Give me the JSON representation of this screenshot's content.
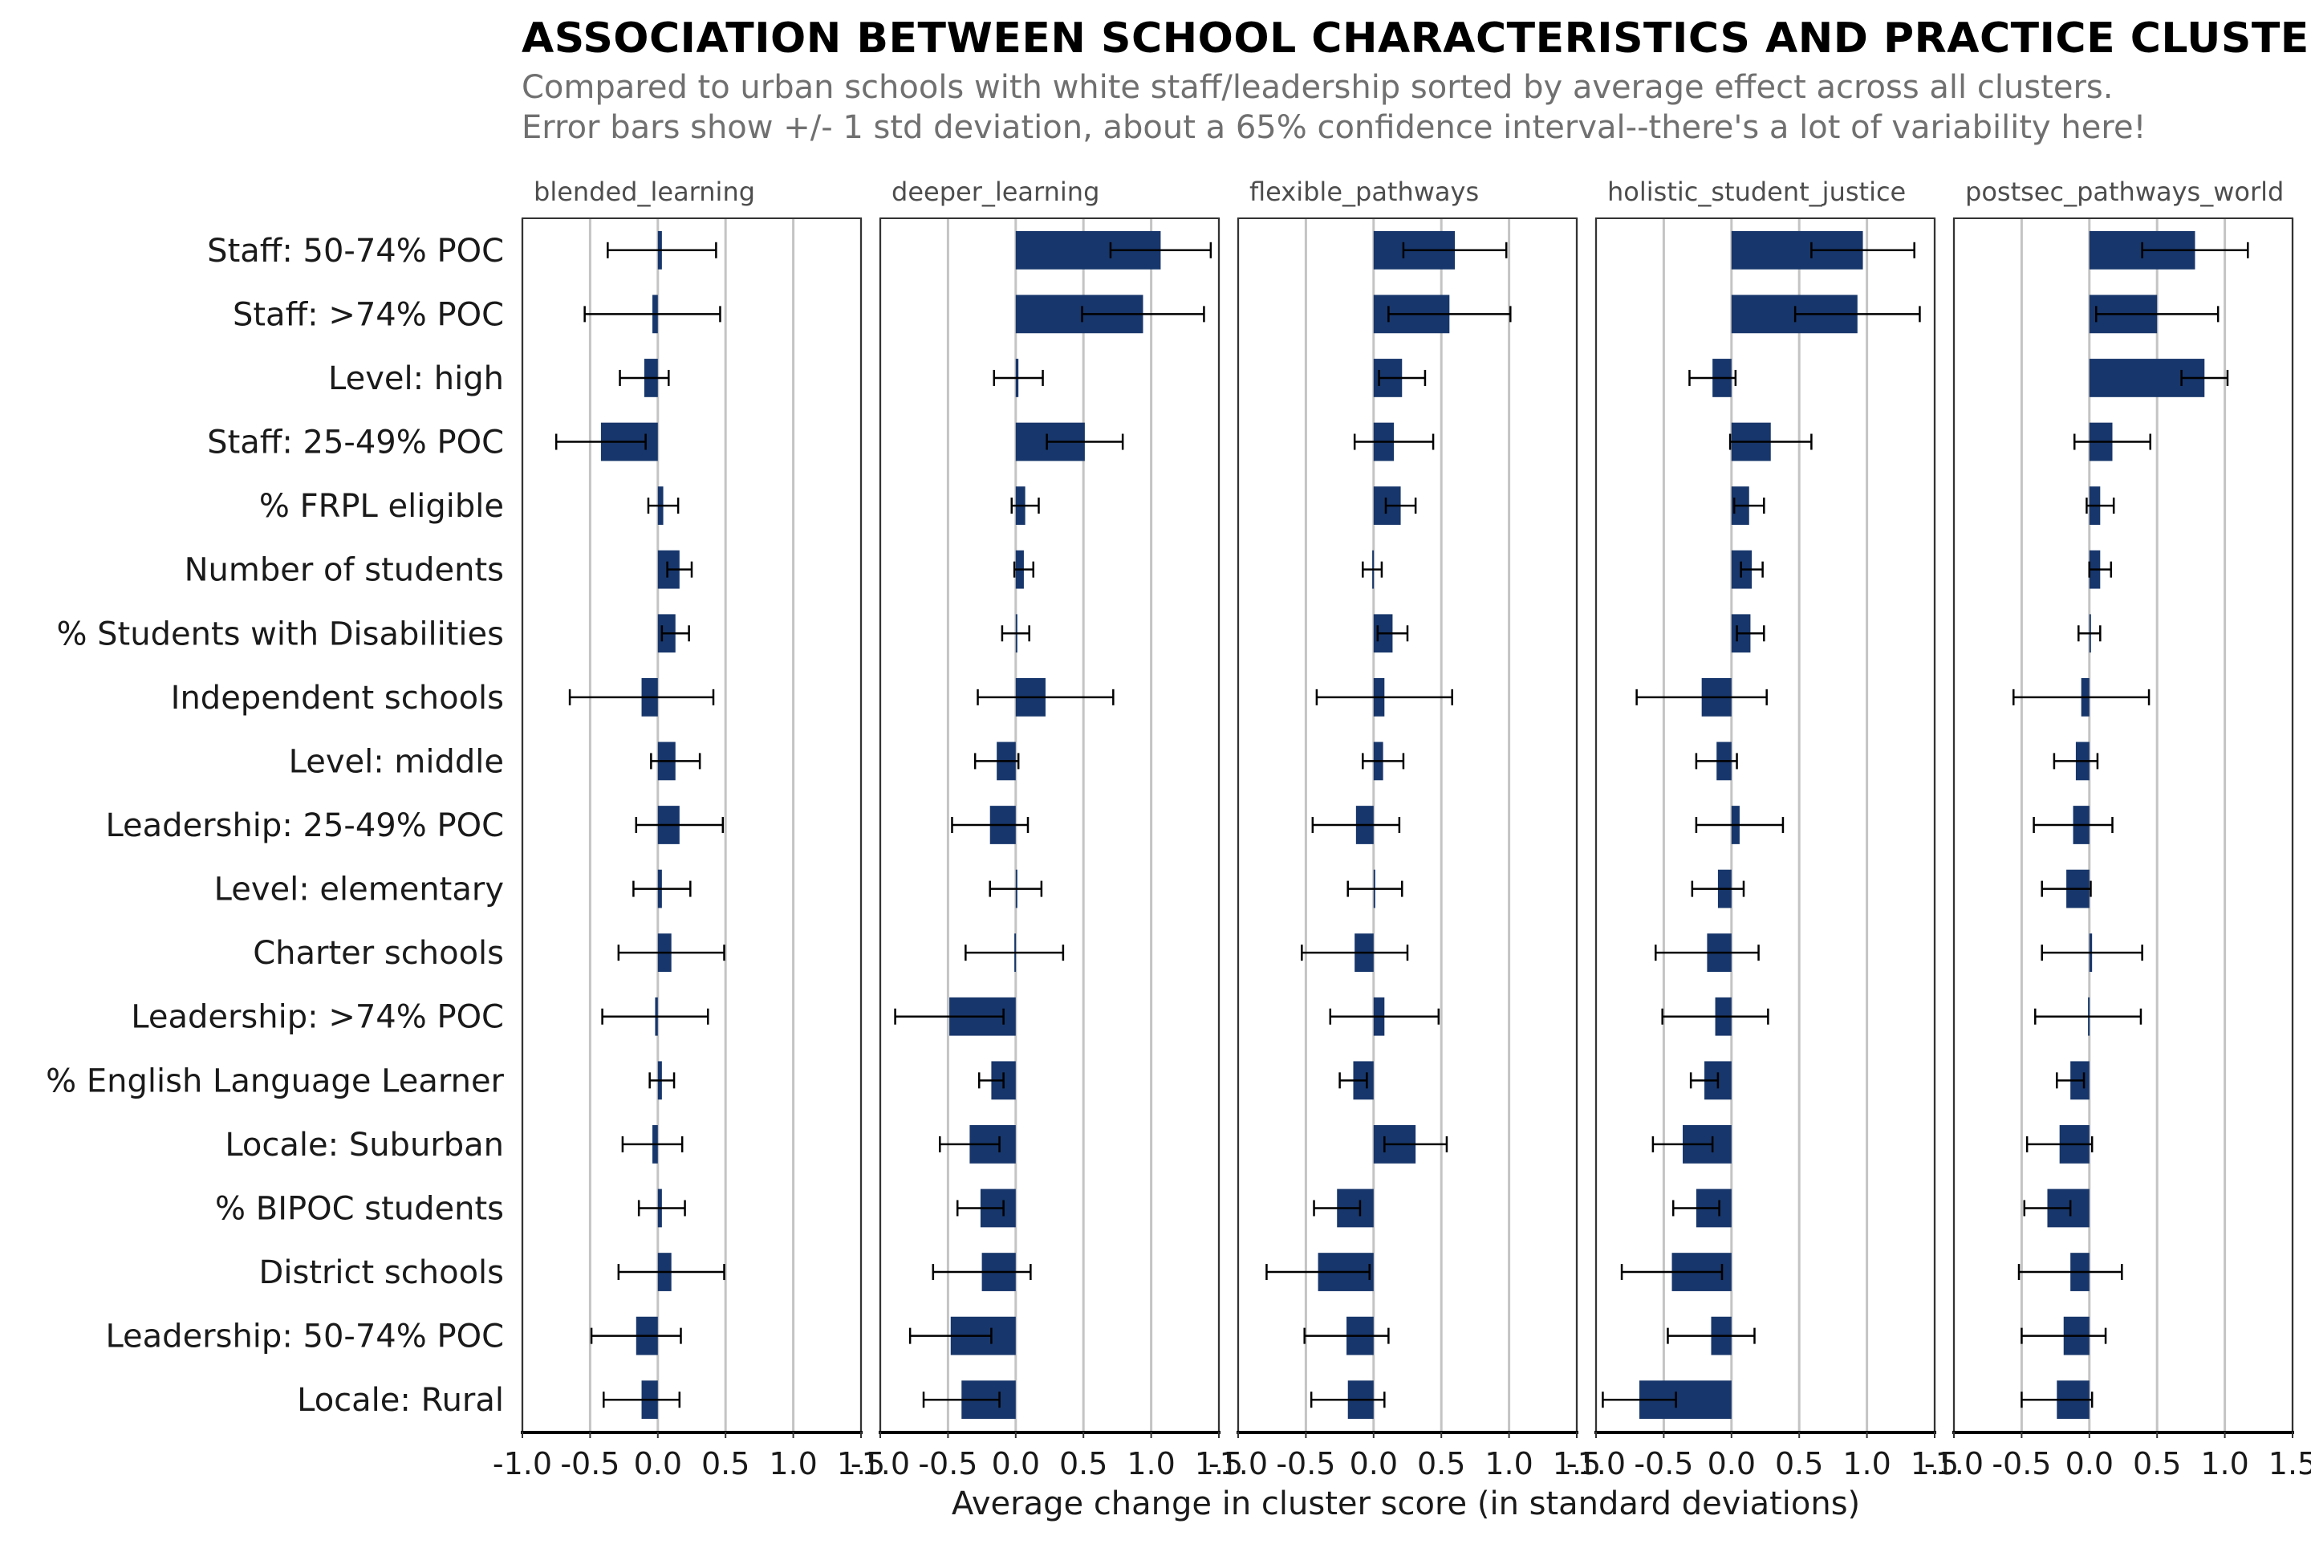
{
  "chart_data": {
    "type": "bar",
    "orientation": "horizontal",
    "title": "ASSOCIATION BETWEEN SCHOOL CHARACTERISTICS AND PRACTICE CLUSTERS",
    "subtitle_lines": [
      "Compared to urban schools with white staff/leadership sorted by average effect across all clusters.",
      "Error bars show +/- 1 std deviation, about a 65% confidence interval--there's a lot of variability here!"
    ],
    "xlabel": "Average change in cluster score (in standard deviations)",
    "xlim": [
      -1.0,
      1.5
    ],
    "xticks": [
      -1.0,
      -0.5,
      0.0,
      0.5,
      1.0,
      1.5
    ],
    "xtick_labels": [
      "-1.0",
      "-0.5",
      "0.0",
      "0.5",
      "1.0",
      "1.5"
    ],
    "grid": "vertical",
    "bar_color": "#17366b",
    "categories": [
      "Staff: 50-74% POC",
      "Staff: >74% POC",
      "Level: high",
      "Staff: 25-49% POC",
      "% FRPL eligible",
      "Number of students",
      "% Students with Disabilities",
      "Independent schools",
      "Level: middle",
      "Leadership: 25-49% POC",
      "Level: elementary",
      "Charter schools",
      "Leadership: >74% POC",
      "% English Language Learner",
      "Locale: Suburban",
      "% BIPOC students",
      "District schools",
      "Leadership: 50-74% POC",
      "Locale: Rural"
    ],
    "panels": [
      {
        "name": "blended_learning",
        "values": [
          0.03,
          -0.04,
          -0.1,
          -0.42,
          0.04,
          0.16,
          0.13,
          -0.12,
          0.13,
          0.16,
          0.03,
          0.1,
          -0.02,
          0.03,
          -0.04,
          0.03,
          0.1,
          -0.16,
          -0.12
        ],
        "errors": [
          0.4,
          0.5,
          0.18,
          0.33,
          0.11,
          0.09,
          0.1,
          0.53,
          0.18,
          0.32,
          0.21,
          0.39,
          0.39,
          0.09,
          0.22,
          0.17,
          0.39,
          0.33,
          0.28
        ]
      },
      {
        "name": "deeper_learning",
        "values": [
          1.07,
          0.94,
          0.02,
          0.51,
          0.07,
          0.06,
          0.0,
          0.22,
          -0.14,
          -0.19,
          0.0,
          -0.01,
          -0.49,
          -0.18,
          -0.34,
          -0.26,
          -0.25,
          -0.48,
          -0.4
        ],
        "errors": [
          0.37,
          0.45,
          0.18,
          0.28,
          0.1,
          0.07,
          0.1,
          0.5,
          0.16,
          0.28,
          0.19,
          0.36,
          0.4,
          0.09,
          0.22,
          0.17,
          0.36,
          0.3,
          0.28
        ]
      },
      {
        "name": "flexible_pathways",
        "values": [
          0.6,
          0.56,
          0.21,
          0.15,
          0.2,
          -0.01,
          0.14,
          0.08,
          0.07,
          -0.13,
          0.01,
          -0.14,
          0.08,
          -0.15,
          0.31,
          -0.27,
          -0.41,
          -0.2,
          -0.19
        ],
        "errors": [
          0.38,
          0.45,
          0.17,
          0.29,
          0.11,
          0.07,
          0.11,
          0.5,
          0.15,
          0.32,
          0.2,
          0.39,
          0.4,
          0.1,
          0.23,
          0.17,
          0.38,
          0.31,
          0.27
        ]
      },
      {
        "name": "holistic_student_justice",
        "values": [
          0.97,
          0.93,
          -0.14,
          0.29,
          0.13,
          0.15,
          0.14,
          -0.22,
          -0.11,
          0.06,
          -0.1,
          -0.18,
          -0.12,
          -0.2,
          -0.36,
          -0.26,
          -0.44,
          -0.15,
          -0.68
        ],
        "errors": [
          0.38,
          0.46,
          0.17,
          0.3,
          0.11,
          0.08,
          0.1,
          0.48,
          0.15,
          0.32,
          0.19,
          0.38,
          0.39,
          0.1,
          0.22,
          0.17,
          0.37,
          0.32,
          0.27
        ]
      },
      {
        "name": "postsec_pathways_world",
        "values": [
          0.78,
          0.5,
          0.85,
          0.17,
          0.08,
          0.08,
          0.0,
          -0.06,
          -0.1,
          -0.12,
          -0.17,
          0.02,
          -0.01,
          -0.14,
          -0.22,
          -0.31,
          -0.14,
          -0.19,
          -0.24
        ],
        "errors": [
          0.39,
          0.45,
          0.17,
          0.28,
          0.1,
          0.08,
          0.08,
          0.5,
          0.16,
          0.29,
          0.18,
          0.37,
          0.39,
          0.1,
          0.24,
          0.17,
          0.38,
          0.31,
          0.26
        ]
      }
    ]
  }
}
